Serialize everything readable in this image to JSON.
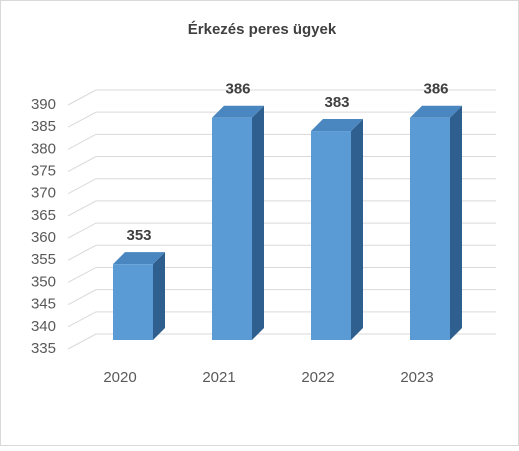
{
  "chart_data": {
    "type": "bar3d",
    "title": "Érkezés peres ügyek",
    "categories": [
      "2020",
      "2021",
      "2022",
      "2023"
    ],
    "values": [
      353,
      386,
      383,
      386
    ],
    "color": "#5b9bd5",
    "ylim": [
      335,
      390
    ],
    "yticks": [
      335,
      340,
      345,
      350,
      355,
      360,
      365,
      370,
      375,
      380,
      385,
      390
    ],
    "grid": true
  }
}
